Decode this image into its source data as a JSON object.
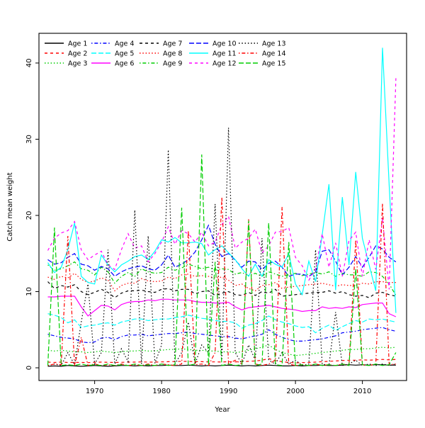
{
  "figure": {
    "background": "#ffffff",
    "box_color": "#000000"
  },
  "chart_data": {
    "type": "line",
    "title": "",
    "xlabel": "Year",
    "ylabel": "Catch mean weight",
    "xlim": [
      1961.68,
      2016.6
    ],
    "ylim": [
      -1.67,
      43.9
    ],
    "x_ticks": [
      1970,
      1980,
      1990,
      2000,
      2010
    ],
    "y_ticks": [
      0,
      10,
      20,
      30,
      40
    ],
    "grid": false,
    "legend_position": "top-left",
    "legend_columns": 5,
    "x": [
      1963,
      1964,
      1965,
      1966,
      1967,
      1968,
      1969,
      1970,
      1971,
      1972,
      1973,
      1974,
      1975,
      1976,
      1977,
      1978,
      1979,
      1980,
      1981,
      1982,
      1983,
      1984,
      1985,
      1986,
      1987,
      1988,
      1989,
      1990,
      1991,
      1992,
      1993,
      1994,
      1995,
      1996,
      1997,
      1998,
      1999,
      2000,
      2001,
      2002,
      2003,
      2004,
      2005,
      2006,
      2007,
      2008,
      2009,
      2010,
      2011,
      2012,
      2013,
      2014,
      2015
    ],
    "series": [
      {
        "name": "Age 1",
        "color": "#000000",
        "lty": "solid",
        "values": [
          0.2,
          0.25,
          0.2,
          0.3,
          0.25,
          0.2,
          0.25,
          0.3,
          0.25,
          0.2,
          0.25,
          0.3,
          0.3,
          0.25,
          0.3,
          0.25,
          0.3,
          0.3,
          0.35,
          0.3,
          0.3,
          0.35,
          0.3,
          0.25,
          0.3,
          0.25,
          0.3,
          0.35,
          0.3,
          0.25,
          0.3,
          0.25,
          0.3,
          0.35,
          0.3,
          0.25,
          0.25,
          0.3,
          0.25,
          0.3,
          0.3,
          0.35,
          0.3,
          0.3,
          0.35,
          0.4,
          0.35,
          0.4,
          0.35,
          0.4,
          0.4,
          0.35,
          0.35
        ]
      },
      {
        "name": "Age 2",
        "color": "#FF0000",
        "lty": "dashed",
        "values": [
          0.75,
          0.7,
          0.75,
          0.7,
          0.72,
          0.7,
          0.68,
          0.72,
          0.75,
          0.72,
          0.7,
          0.72,
          0.75,
          0.75,
          0.78,
          0.75,
          0.75,
          0.78,
          0.8,
          0.82,
          0.85,
          0.84,
          0.8,
          0.8,
          0.78,
          0.78,
          0.76,
          0.8,
          0.78,
          0.8,
          0.85,
          0.9,
          1.0,
          1.2,
          0.95,
          0.8,
          0.7,
          0.65,
          0.68,
          0.7,
          0.75,
          0.8,
          0.85,
          0.9,
          0.95,
          1.0,
          1.0,
          1.05,
          1.0,
          1.05,
          1.1,
          1.05,
          1.1
        ]
      },
      {
        "name": "Age 3",
        "color": "#00CD00",
        "lty": "dotted",
        "values": [
          2.3,
          2.2,
          2.3,
          2.2,
          2.1,
          2.1,
          2.0,
          2.1,
          2.2,
          2.1,
          2.0,
          2.1,
          2.2,
          2.2,
          2.3,
          2.2,
          2.2,
          2.3,
          2.4,
          2.4,
          2.5,
          2.4,
          2.3,
          2.3,
          2.2,
          2.2,
          2.1,
          2.1,
          2.0,
          2.1,
          2.3,
          2.5,
          2.7,
          3.0,
          2.4,
          2.0,
          1.8,
          1.6,
          1.7,
          1.8,
          1.9,
          2.0,
          2.1,
          2.2,
          2.3,
          2.4,
          2.4,
          2.5,
          2.5,
          2.6,
          2.7,
          2.6,
          2.7
        ]
      },
      {
        "name": "Age 4",
        "color": "#0000FF",
        "lty": "dotdash",
        "values": [
          4.4,
          4.2,
          4.0,
          3.9,
          3.8,
          3.4,
          3.3,
          3.4,
          3.9,
          4.0,
          3.7,
          4.1,
          4.3,
          4.3,
          4.4,
          4.2,
          4.3,
          4.4,
          4.5,
          4.5,
          4.6,
          4.7,
          4.5,
          4.4,
          4.3,
          4.2,
          4.1,
          4.1,
          3.9,
          3.8,
          4.0,
          4.2,
          4.4,
          5.0,
          4.4,
          4.0,
          3.7,
          3.5,
          3.5,
          3.6,
          3.7,
          3.8,
          4.0,
          4.2,
          4.6,
          4.7,
          4.8,
          5.0,
          5.1,
          5.2,
          5.3,
          5.0,
          4.8
        ]
      },
      {
        "name": "Age 5",
        "color": "#00FFFF",
        "lty": "longdash",
        "values": [
          7.1,
          6.9,
          6.6,
          5.9,
          6.3,
          5.3,
          5.5,
          5.6,
          5.8,
          5.9,
          5.6,
          6.0,
          6.2,
          6.4,
          6.4,
          6.2,
          6.3,
          6.4,
          6.4,
          6.6,
          6.7,
          6.9,
          6.7,
          6.5,
          6.4,
          6.2,
          6.1,
          6.1,
          5.9,
          5.2,
          5.6,
          5.8,
          6.2,
          6.8,
          6.3,
          6.0,
          5.8,
          5.5,
          5.3,
          5.4,
          4.6,
          5.2,
          5.6,
          4.9,
          5.4,
          5.8,
          6.2,
          6.0,
          6.4,
          6.3,
          6.4,
          6.2,
          6.0
        ]
      },
      {
        "name": "Age 6",
        "color": "#FF00FF",
        "lty": "solid",
        "values": [
          9.3,
          9.3,
          9.4,
          9.4,
          9.4,
          8.0,
          6.8,
          7.5,
          8.2,
          8.1,
          7.6,
          8.3,
          8.6,
          8.7,
          8.7,
          8.9,
          8.8,
          9.0,
          9.0,
          8.9,
          8.9,
          8.9,
          8.7,
          8.6,
          8.6,
          8.5,
          8.5,
          8.6,
          8.0,
          7.6,
          7.9,
          8.0,
          8.1,
          8.2,
          8.0,
          7.8,
          7.7,
          7.6,
          7.4,
          7.5,
          7.5,
          8.0,
          7.8,
          7.9,
          7.8,
          8.0,
          7.9,
          8.3,
          8.4,
          8.5,
          8.5,
          7.1,
          6.7
        ]
      },
      {
        "name": "Age 7",
        "color": "#000000",
        "lty": "dashed",
        "values": [
          11.3,
          10.4,
          10.8,
          10.6,
          10.9,
          10.0,
          9.6,
          9.9,
          10.3,
          9.9,
          9.2,
          9.8,
          10.1,
          10.1,
          10.2,
          10.0,
          9.9,
          10.3,
          10.4,
          10.1,
          10.3,
          10.3,
          9.7,
          10.0,
          10.1,
          9.5,
          9.8,
          10.0,
          9.6,
          9.5,
          9.9,
          9.5,
          10.0,
          9.8,
          10.3,
          9.4,
          9.5,
          9.6,
          9.7,
          9.8,
          9.9,
          9.9,
          10.1,
          9.8,
          10.0,
          9.6,
          9.4,
          9.5,
          9.2,
          9.8,
          9.9,
          9.6,
          9.4
        ]
      },
      {
        "name": "Age 8",
        "color": "#FF0000",
        "lty": "dotted",
        "values": [
          11.9,
          11.6,
          12.0,
          11.8,
          12.4,
          11.6,
          11.2,
          11.4,
          11.8,
          11.5,
          10.1,
          10.8,
          11.1,
          11.1,
          11.7,
          11.4,
          11.3,
          11.4,
          11.9,
          11.7,
          12.2,
          12.3,
          12.0,
          12.1,
          12.0,
          11.8,
          11.9,
          11.5,
          10.8,
          11.0,
          10.4,
          10.1,
          10.8,
          10.9,
          11.2,
          10.4,
          10.6,
          10.7,
          10.8,
          10.9,
          11.0,
          11.1,
          10.9,
          10.7,
          10.9,
          10.8,
          10.8,
          11.1,
          11.0,
          11.3,
          11.3,
          11.2,
          11.2
        ]
      },
      {
        "name": "Age 9",
        "color": "#00CD00",
        "lty": "dotdash",
        "values": [
          13.5,
          12.8,
          13.0,
          13.4,
          13.9,
          13.0,
          12.8,
          12.2,
          13.2,
          12.6,
          11.1,
          12.0,
          12.5,
          12.0,
          13.0,
          12.6,
          12.4,
          12.5,
          13.2,
          12.8,
          13.1,
          13.6,
          13.3,
          13.0,
          13.2,
          12.8,
          13.0,
          12.9,
          12.3,
          12.5,
          12.1,
          12.4,
          12.0,
          12.6,
          12.3,
          12.0,
          12.2,
          12.4,
          12.1,
          12.3,
          12.5,
          12.3,
          12.6,
          12.0,
          12.4,
          12.2,
          12.2,
          12.0,
          12.6,
          12.5,
          12.0,
          11.0,
          9.5
        ]
      },
      {
        "name": "Age 10",
        "color": "#0000FF",
        "lty": "longdash",
        "values": [
          14.2,
          13.6,
          13.8,
          14.5,
          15.0,
          13.6,
          13.4,
          12.8,
          13.3,
          13.0,
          12.0,
          12.6,
          13.0,
          13.2,
          13.4,
          13.0,
          12.8,
          13.5,
          14.8,
          13.2,
          13.6,
          14.2,
          15.2,
          16.8,
          18.7,
          16.2,
          14.6,
          15.0,
          14.1,
          13.2,
          14.0,
          13.9,
          12.9,
          13.7,
          14.0,
          13.2,
          12.0,
          12.3,
          12.3,
          12.0,
          12.6,
          15.3,
          15.5,
          14.0,
          12.2,
          13.2,
          14.6,
          13.2,
          14.5,
          16.0,
          15.6,
          14.5,
          13.9
        ]
      },
      {
        "name": "Age 11",
        "color": "#00FFFF",
        "lty": "solid",
        "values": [
          13.8,
          12.5,
          13.2,
          15.5,
          19.0,
          12.0,
          11.2,
          11.0,
          14.8,
          13.5,
          12.6,
          13.5,
          14.0,
          14.6,
          14.8,
          14.2,
          15.3,
          16.8,
          16.5,
          17.1,
          16.4,
          16.4,
          16.5,
          16.3,
          14.8,
          15.5,
          16.0,
          15.1,
          14.2,
          13.0,
          12.0,
          13.6,
          12.0,
          14.2,
          13.6,
          13.2,
          15.0,
          11.0,
          9.6,
          14.0,
          11.3,
          17.5,
          24.1,
          10.2,
          22.4,
          13.5,
          25.7,
          17.0,
          13.5,
          10.1,
          42.0,
          24.0,
          7.2
        ]
      },
      {
        "name": "Age 12",
        "color": "#FF00FF",
        "lty": "dashed",
        "values": [
          15.4,
          17.0,
          17.7,
          18.0,
          19.2,
          15.5,
          14.2,
          14.8,
          15.3,
          13.5,
          12.9,
          15.5,
          17.6,
          15.7,
          16.0,
          13.9,
          15.0,
          16.5,
          18.5,
          16.2,
          18.0,
          17.6,
          16.5,
          17.8,
          16.0,
          16.5,
          18.8,
          19.9,
          15.7,
          16.5,
          17.0,
          18.2,
          15.1,
          16.0,
          17.8,
          17.9,
          18.4,
          14.5,
          13.4,
          11.5,
          13.0,
          17.6,
          13.2,
          16.4,
          12.0,
          16.7,
          17.8,
          12.0,
          16.8,
          12.9,
          19.7,
          10.3,
          38.0
        ]
      },
      {
        "name": "Age 13",
        "color": "#000000",
        "lty": "dotted",
        "values": [
          0.3,
          0.5,
          0.3,
          2.0,
          0.4,
          6.0,
          11.0,
          0.5,
          2.0,
          15.5,
          0.5,
          2.5,
          0.8,
          20.7,
          0.5,
          17.3,
          0.6,
          3.0,
          28.6,
          0.5,
          2.0,
          6.0,
          0.5,
          3.0,
          2.0,
          21.5,
          1.0,
          31.5,
          2.0,
          0.5,
          3.0,
          1.0,
          17.0,
          1.0,
          0.5,
          2.0,
          0.5,
          1.0,
          0.3,
          0.5,
          15.5,
          0.5,
          0.3,
          7.3,
          0.3,
          0.5,
          1.0,
          0.3,
          0.5,
          0.3,
          0.5,
          0.3,
          0.5
        ]
      },
      {
        "name": "Age 14",
        "color": "#FF0000",
        "lty": "dotdash",
        "values": [
          0.3,
          0.5,
          0.4,
          17.3,
          0.3,
          4.0,
          0.3,
          0.5,
          0.3,
          0.4,
          0.3,
          0.5,
          0.3,
          0.4,
          0.3,
          0.5,
          0.3,
          0.5,
          0.4,
          0.3,
          0.5,
          18.0,
          0.4,
          0.5,
          0.3,
          2.0,
          22.4,
          0.5,
          1.0,
          0.5,
          19.5,
          0.5,
          0.3,
          0.5,
          1.0,
          21.1,
          0.5,
          0.3,
          0.4,
          0.3,
          0.5,
          0.3,
          0.4,
          0.3,
          0.5,
          0.3,
          16.8,
          0.4,
          0.3,
          0.5,
          21.6,
          0.4,
          0.5
        ]
      },
      {
        "name": "Age 15",
        "color": "#00CD00",
        "lty": "longdash",
        "values": [
          0.3,
          18.4,
          0.3,
          0.4,
          0.3,
          0.5,
          0.3,
          0.4,
          0.3,
          0.5,
          0.3,
          0.4,
          0.3,
          0.5,
          0.3,
          0.4,
          0.3,
          0.5,
          0.3,
          0.4,
          21.0,
          0.3,
          0.5,
          28.0,
          0.4,
          13.9,
          0.3,
          0.5,
          0.3,
          0.4,
          19.3,
          0.3,
          0.5,
          19.0,
          0.4,
          0.3,
          16.5,
          0.3,
          0.4,
          0.3,
          0.5,
          0.3,
          0.4,
          0.3,
          0.5,
          0.3,
          13.0,
          0.4,
          0.3,
          0.5,
          0.3,
          0.4,
          2.0
        ]
      }
    ]
  },
  "legend": {
    "entries": [
      "Age 1",
      "Age 2",
      "Age 3",
      "Age 4",
      "Age 5",
      "Age 6",
      "Age 7",
      "Age 8",
      "Age 9",
      "Age 10",
      "Age 11",
      "Age 12",
      "Age 13",
      "Age 14",
      "Age 15"
    ]
  }
}
